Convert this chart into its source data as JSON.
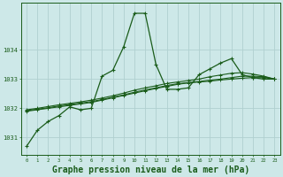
{
  "bg_color": "#cde8e8",
  "grid_color": "#b0d0d0",
  "line_color": "#1a5c1a",
  "xlabel": "Graphe pression niveau de la mer (hPa)",
  "xlabel_fontsize": 7.0,
  "yticks": [
    1031,
    1032,
    1033,
    1034
  ],
  "xticks": [
    0,
    1,
    2,
    3,
    4,
    5,
    6,
    7,
    8,
    9,
    10,
    11,
    12,
    13,
    14,
    15,
    16,
    17,
    18,
    19,
    20,
    21,
    22,
    23
  ],
  "xlim": [
    -0.5,
    23.5
  ],
  "ylim": [
    1030.4,
    1035.6
  ],
  "series_main": [
    1030.7,
    1031.25,
    1031.55,
    1031.75,
    1032.05,
    1031.95,
    1032.0,
    1033.1,
    1033.3,
    1034.1,
    1035.25,
    1035.25,
    1033.5,
    1032.65,
    1032.65,
    1032.7,
    1033.15,
    1033.35,
    1033.55,
    1033.7,
    1033.15,
    1033.05,
    1033.0,
    1033.0
  ],
  "series_trend1": [
    1031.9,
    1031.95,
    1032.0,
    1032.05,
    1032.1,
    1032.15,
    1032.2,
    1032.28,
    1032.36,
    1032.44,
    1032.52,
    1032.6,
    1032.68,
    1032.75,
    1032.82,
    1032.87,
    1032.9,
    1032.93,
    1032.97,
    1033.0,
    1033.03,
    1033.05,
    1033.05,
    1033.0
  ],
  "series_trend2": [
    1031.92,
    1031.97,
    1032.02,
    1032.08,
    1032.13,
    1032.18,
    1032.23,
    1032.3,
    1032.38,
    1032.46,
    1032.55,
    1032.63,
    1032.7,
    1032.78,
    1032.84,
    1032.88,
    1032.92,
    1032.96,
    1033.0,
    1033.05,
    1033.1,
    1033.1,
    1033.08,
    1033.0
  ],
  "series_trend3": [
    1031.95,
    1032.0,
    1032.06,
    1032.12,
    1032.17,
    1032.22,
    1032.28,
    1032.35,
    1032.43,
    1032.52,
    1032.62,
    1032.7,
    1032.77,
    1032.85,
    1032.9,
    1032.95,
    1033.0,
    1033.08,
    1033.14,
    1033.2,
    1033.22,
    1033.17,
    1033.1,
    1033.0
  ]
}
